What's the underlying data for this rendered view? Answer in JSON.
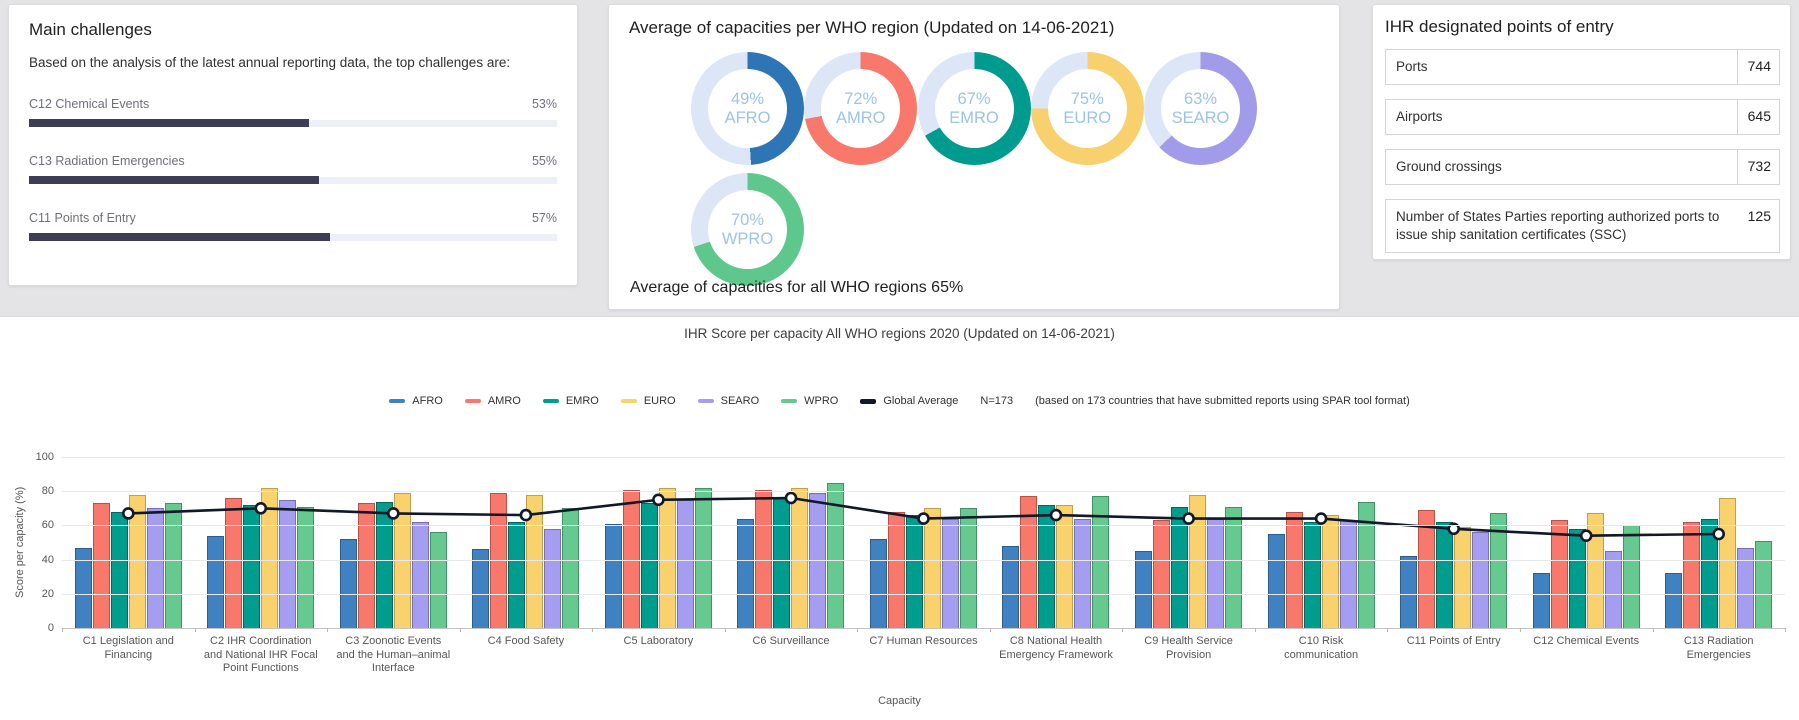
{
  "cards": {
    "challenges": {
      "title": "Main challenges",
      "subtitle": "Based on the analysis of the latest annual reporting data, the top challenges are:"
    },
    "regions": {
      "title": "Average of capacities per WHO region (Updated on 14-06-2021)",
      "footer": "Average of capacities for all WHO regions 65%"
    },
    "poe": {
      "title": "IHR designated points of entry"
    }
  },
  "chart_data": [
    {
      "id": "main-challenges",
      "type": "bar",
      "orientation": "horizontal",
      "categories": [
        "C12 Chemical Events",
        "C13 Radiation Emergencies",
        "C11 Points of Entry"
      ],
      "values": [
        53,
        55,
        57
      ],
      "value_labels": [
        "53%",
        "55%",
        "57%"
      ],
      "bar_color": "#3f3d56",
      "track_color": "#edf0f7",
      "xlim": [
        0,
        100
      ]
    },
    {
      "id": "region-capacity-donuts",
      "type": "pie",
      "subtype": "donut",
      "items": [
        {
          "label": "AFRO",
          "value": 49,
          "color": "#2e75b6"
        },
        {
          "label": "AMRO",
          "value": 72,
          "color": "#f8796b"
        },
        {
          "label": "EMRO",
          "value": 67,
          "color": "#009b8f"
        },
        {
          "label": "EURO",
          "value": 75,
          "color": "#f8d06e"
        },
        {
          "label": "SEARO",
          "value": 63,
          "color": "#a29bea"
        },
        {
          "label": "WPRO",
          "value": 70,
          "color": "#5ec88c"
        }
      ],
      "track_color": "#dce6f6",
      "text_color": "#9cc3e8",
      "overall_average": 65
    },
    {
      "id": "points-of-entry",
      "type": "table",
      "rows": [
        {
          "label": "Ports",
          "value": "744"
        },
        {
          "label": "Airports",
          "value": "645"
        },
        {
          "label": "Ground crossings",
          "value": "732"
        },
        {
          "label": "Number of States Parties reporting authorized ports to issue ship sanitation certificates (SSC)",
          "value": "125"
        }
      ]
    },
    {
      "id": "score-per-capacity",
      "type": "bar",
      "title": "IHR Score per capacity All WHO regions 2020  (Updated on 14-06-2021)",
      "xlabel": "Capacity",
      "ylabel": "Score per capacity (%)",
      "ylim": [
        0,
        100
      ],
      "yticks": [
        0,
        20,
        40,
        60,
        80,
        100
      ],
      "grid": true,
      "legend_position": "top",
      "legend_note_n": "N=173",
      "legend_note": "(based on 173 countries that have submitted reports using SPAR tool format)",
      "categories": [
        "C1 Legislation and Financing",
        "C2 IHR Coordination and National IHR Focal Point Functions",
        "C3 Zoonotic Events and the Human–animal Interface",
        "C4 Food Safety",
        "C5 Laboratory",
        "C6 Surveillance",
        "C7 Human Resources",
        "C8 National Health Emergency Framework",
        "C9 Health Service Provision",
        "C10 Risk communication",
        "C11 Points of Entry",
        "C12 Chemical Events",
        "C13 Radiation Emergencies"
      ],
      "series": [
        {
          "name": "AFRO",
          "color": "#3f81c1",
          "border": "#2b5d8e",
          "values": [
            47,
            54,
            52,
            46,
            61,
            64,
            52,
            48,
            45,
            55,
            42,
            32,
            32
          ]
        },
        {
          "name": "AMRO",
          "color": "#f8796b",
          "border": "#b65349",
          "values": [
            73,
            76,
            73,
            79,
            81,
            81,
            68,
            77,
            63,
            68,
            69,
            63,
            62
          ]
        },
        {
          "name": "EMRO",
          "color": "#009d8f",
          "border": "#00695f",
          "values": [
            68,
            72,
            74,
            62,
            73,
            76,
            66,
            72,
            71,
            62,
            62,
            58,
            64
          ]
        },
        {
          "name": "EURO",
          "color": "#f9d26d",
          "border": "#bfa04e",
          "values": [
            78,
            82,
            79,
            78,
            82,
            82,
            70,
            72,
            78,
            66,
            59,
            67,
            76
          ]
        },
        {
          "name": "SEARO",
          "color": "#a49df0",
          "border": "#776fb8",
          "values": [
            70,
            75,
            62,
            58,
            75,
            79,
            64,
            64,
            64,
            63,
            56,
            45,
            47
          ]
        },
        {
          "name": "WPRO",
          "color": "#66c98f",
          "border": "#459167",
          "values": [
            73,
            71,
            56,
            70,
            82,
            85,
            70,
            77,
            71,
            74,
            67,
            60,
            51
          ]
        }
      ],
      "line_series": {
        "name": "Global Average",
        "color": "#111827",
        "values": [
          67,
          70,
          67,
          66,
          75,
          76,
          64,
          66,
          64,
          64,
          58,
          54,
          55
        ]
      }
    }
  ]
}
